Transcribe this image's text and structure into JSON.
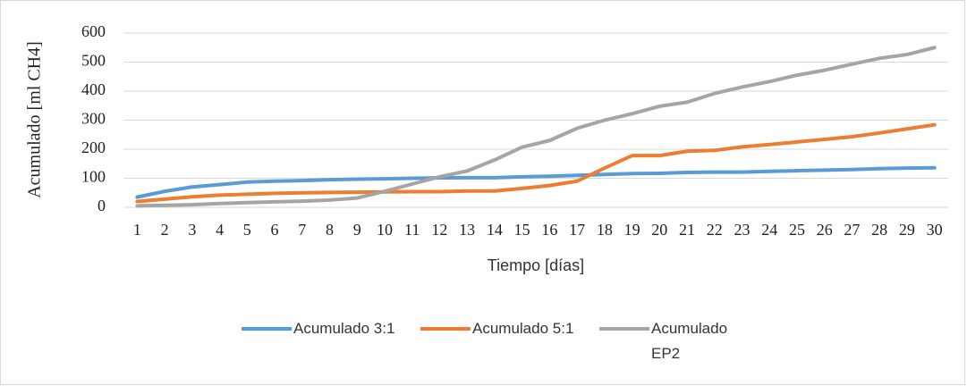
{
  "chart_data": {
    "type": "line",
    "x_label": "Tiempo [días]",
    "y_label": "Acumulado [ml CH4]",
    "categories": [
      "1",
      "2",
      "3",
      "4",
      "5",
      "6",
      "7",
      "8",
      "9",
      "10",
      "11",
      "12",
      "13",
      "14",
      "15",
      "16",
      "17",
      "18",
      "19",
      "20",
      "21",
      "22",
      "23",
      "24",
      "25",
      "26",
      "27",
      "28",
      "29",
      "30"
    ],
    "series": [
      {
        "name": "Acumulado 3:1",
        "color": "#5b9bd5",
        "values": [
          35,
          55,
          70,
          78,
          87,
          90,
          92,
          95,
          97,
          98,
          100,
          101,
          102,
          102,
          105,
          107,
          110,
          113,
          116,
          117,
          120,
          121,
          121,
          124,
          126,
          128,
          130,
          133,
          135,
          136
        ]
      },
      {
        "name": "Acumulado 5:1",
        "color": "#ed7d31",
        "values": [
          20,
          28,
          36,
          42,
          45,
          48,
          50,
          51,
          52,
          53,
          54,
          54,
          56,
          56,
          65,
          75,
          90,
          135,
          178,
          178,
          193,
          196,
          208,
          216,
          225,
          234,
          243,
          256,
          270,
          284
        ]
      },
      {
        "name": "Acumulado EP2",
        "color": "#a5a5a5",
        "values": [
          5,
          7,
          9,
          13,
          16,
          19,
          21,
          25,
          32,
          55,
          80,
          105,
          125,
          163,
          207,
          230,
          272,
          300,
          322,
          348,
          362,
          392,
          414,
          433,
          455,
          472,
          493,
          513,
          526,
          550
        ]
      }
    ],
    "ylim": [
      0,
      600
    ],
    "yticks": [
      0,
      100,
      200,
      300,
      400,
      500,
      600
    ],
    "grid": true,
    "legend": "bottom"
  }
}
